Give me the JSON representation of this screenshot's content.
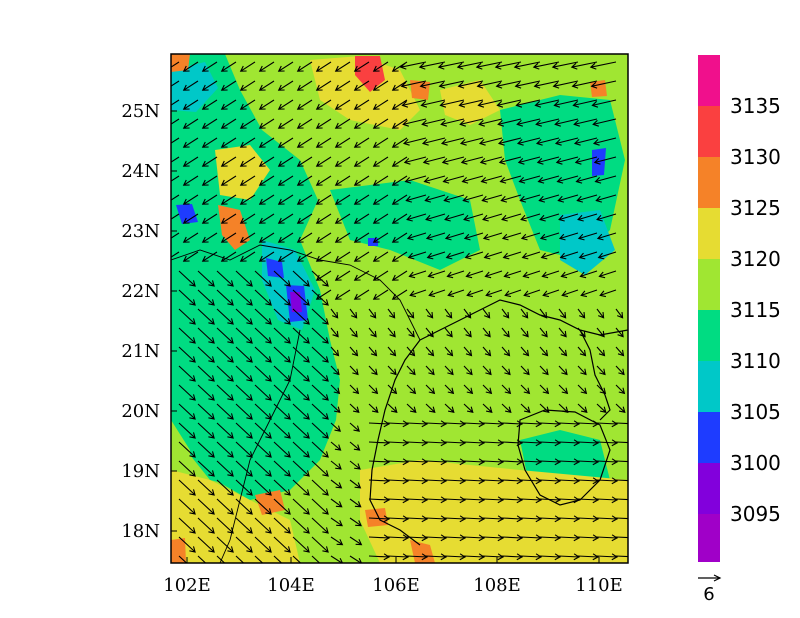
{
  "map": {
    "lon_ticks": [
      "102E",
      "104E",
      "106E",
      "108E",
      "110E"
    ],
    "lat_ticks": [
      "25N",
      "24N",
      "23N",
      "22N",
      "21N",
      "20N",
      "19N",
      "18N"
    ],
    "lon_values": [
      102,
      104,
      106,
      108,
      110
    ],
    "lat_values": [
      25,
      24,
      23,
      22,
      21,
      20,
      19,
      18
    ],
    "lon_range": [
      101.7,
      110.8
    ],
    "lat_range": [
      17.4,
      25.9
    ],
    "field": "geopotential height (contour fill)",
    "vector_field": "wind vectors",
    "reference_vector_label": "6"
  },
  "colorbar": {
    "labels": [
      "3135",
      "3130",
      "3125",
      "3120",
      "3115",
      "3110",
      "3105",
      "3100",
      "3095"
    ],
    "levels": [
      3095,
      3100,
      3105,
      3110,
      3115,
      3120,
      3125,
      3130,
      3135
    ],
    "colors_top_to_bottom": [
      "#f0108c",
      "#fa4040",
      "#f58228",
      "#e6dc32",
      "#a0e632",
      "#00dc82",
      "#00c8c8",
      "#1e3cff",
      "#8200dc",
      "#a000c8"
    ]
  },
  "colors": {
    "green": "#a0e632",
    "yellow": "#e6dc32",
    "teal": "#00dc82",
    "cyan": "#00c8c8",
    "orange": "#f58228",
    "red": "#fa4040",
    "blue": "#1e3cff",
    "purple": "#8200dc"
  }
}
